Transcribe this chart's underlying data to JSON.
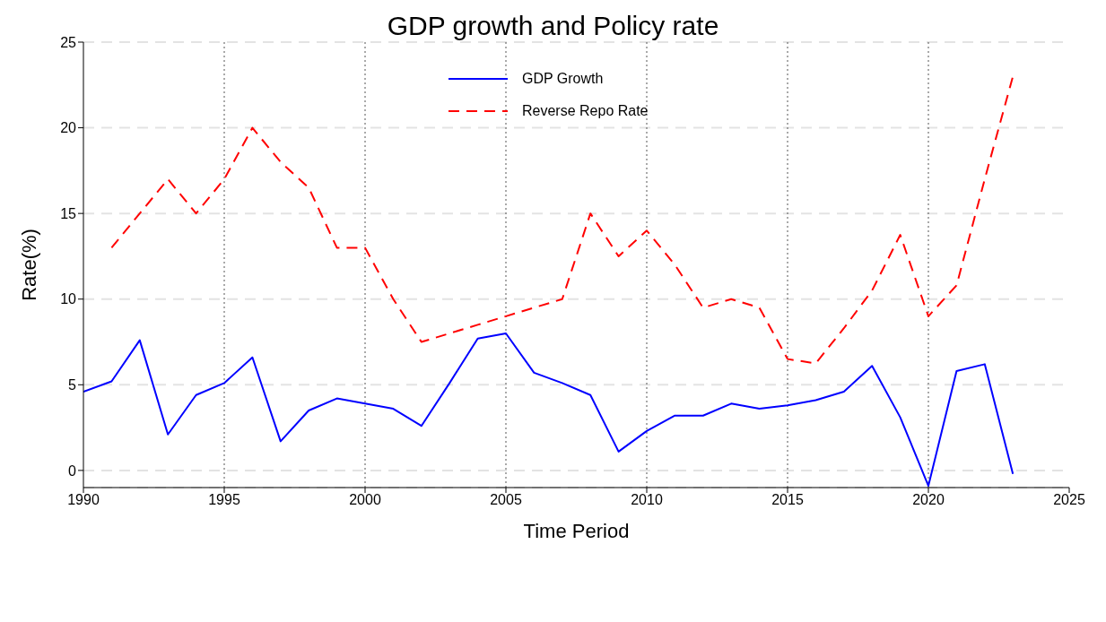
{
  "chart_data": {
    "type": "line",
    "title": "GDP growth and Policy rate",
    "xlabel": "Time Period",
    "ylabel": "Rate(%)",
    "x": [
      1990,
      1991,
      1992,
      1993,
      1994,
      1995,
      1996,
      1997,
      1998,
      1999,
      2000,
      2001,
      2002,
      2003,
      2004,
      2005,
      2006,
      2007,
      2008,
      2009,
      2010,
      2011,
      2012,
      2013,
      2014,
      2015,
      2016,
      2017,
      2018,
      2019,
      2020,
      2021,
      2022,
      2023
    ],
    "series": [
      {
        "name": "GDP Growth",
        "color": "#0000ff",
        "line_style": "solid",
        "values": [
          4.6,
          5.2,
          7.6,
          2.1,
          4.4,
          5.1,
          6.6,
          1.7,
          3.5,
          4.2,
          3.9,
          3.6,
          2.6,
          5.1,
          7.7,
          8.0,
          5.7,
          5.1,
          4.4,
          1.1,
          2.3,
          3.2,
          3.2,
          3.9,
          3.6,
          3.8,
          4.1,
          4.6,
          6.1,
          3.1,
          -0.9,
          5.8,
          6.2,
          -0.2
        ]
      },
      {
        "name": "Reverse Repo Rate",
        "color": "#ff0000",
        "line_style": "dashed",
        "values": [
          null,
          13,
          15,
          17,
          15,
          17,
          20,
          18,
          16.5,
          13,
          13,
          10,
          7.5,
          8,
          8.5,
          9,
          9.5,
          10,
          15,
          12.5,
          14,
          12,
          9.5,
          10,
          9.5,
          6.5,
          6.25,
          8.3,
          10.5,
          13.75,
          9,
          10.8,
          17,
          23
        ]
      }
    ],
    "xlim": [
      1990,
      2025
    ],
    "xticks": [
      1990,
      1995,
      2000,
      2005,
      2010,
      2015,
      2020,
      2025
    ],
    "ylim": [
      -1,
      25
    ],
    "yticks": [
      0,
      5,
      10,
      15,
      20,
      25
    ],
    "grid": true,
    "legend": "top"
  }
}
